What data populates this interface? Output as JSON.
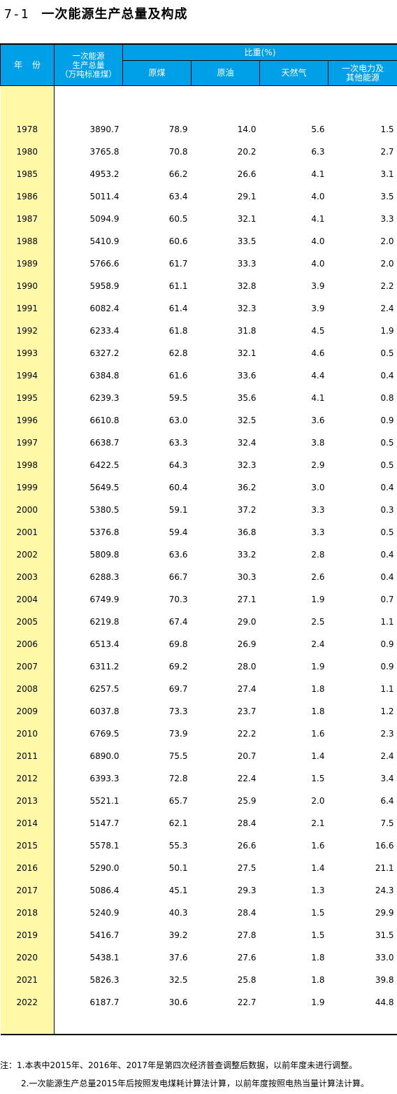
{
  "title": {
    "number": "7-1",
    "text": "一次能源生产总量及构成"
  },
  "header": {
    "year": "年份",
    "total_line1": "一次能源",
    "total_line2": "生产总量",
    "total_line3": "（万吨标准煤）",
    "share": "比重(%)",
    "coal": "原煤",
    "oil": "原油",
    "gas": "天然气",
    "other_line1": "一次电力及",
    "other_line2": "其他能源"
  },
  "rows": [
    {
      "year": "1978",
      "total": "3890.7",
      "coal": "78.9",
      "oil": "14.0",
      "gas": "5.6",
      "other": "1.5"
    },
    {
      "year": "1980",
      "total": "3765.8",
      "coal": "70.8",
      "oil": "20.2",
      "gas": "6.3",
      "other": "2.7"
    },
    {
      "year": "1985",
      "total": "4953.2",
      "coal": "66.2",
      "oil": "26.6",
      "gas": "4.1",
      "other": "3.1"
    },
    {
      "year": "1986",
      "total": "5011.4",
      "coal": "63.4",
      "oil": "29.1",
      "gas": "4.0",
      "other": "3.5"
    },
    {
      "year": "1987",
      "total": "5094.9",
      "coal": "60.5",
      "oil": "32.1",
      "gas": "4.1",
      "other": "3.3"
    },
    {
      "year": "1988",
      "total": "5410.9",
      "coal": "60.6",
      "oil": "33.5",
      "gas": "4.0",
      "other": "2.0"
    },
    {
      "year": "1989",
      "total": "5766.6",
      "coal": "61.7",
      "oil": "33.3",
      "gas": "4.0",
      "other": "2.0"
    },
    {
      "year": "1990",
      "total": "5958.9",
      "coal": "61.1",
      "oil": "32.8",
      "gas": "3.9",
      "other": "2.2"
    },
    {
      "year": "1991",
      "total": "6082.4",
      "coal": "61.4",
      "oil": "32.3",
      "gas": "3.9",
      "other": "2.4"
    },
    {
      "year": "1992",
      "total": "6233.4",
      "coal": "61.8",
      "oil": "31.8",
      "gas": "4.5",
      "other": "1.9"
    },
    {
      "year": "1993",
      "total": "6327.2",
      "coal": "62.8",
      "oil": "32.1",
      "gas": "4.6",
      "other": "0.5"
    },
    {
      "year": "1994",
      "total": "6384.8",
      "coal": "61.6",
      "oil": "33.6",
      "gas": "4.4",
      "other": "0.4"
    },
    {
      "year": "1995",
      "total": "6239.3",
      "coal": "59.5",
      "oil": "35.6",
      "gas": "4.1",
      "other": "0.8"
    },
    {
      "year": "1996",
      "total": "6610.8",
      "coal": "63.0",
      "oil": "32.5",
      "gas": "3.6",
      "other": "0.9"
    },
    {
      "year": "1997",
      "total": "6638.7",
      "coal": "63.3",
      "oil": "32.4",
      "gas": "3.8",
      "other": "0.5"
    },
    {
      "year": "1998",
      "total": "6422.5",
      "coal": "64.3",
      "oil": "32.3",
      "gas": "2.9",
      "other": "0.5"
    },
    {
      "year": "1999",
      "total": "5649.5",
      "coal": "60.4",
      "oil": "36.2",
      "gas": "3.0",
      "other": "0.4"
    },
    {
      "year": "2000",
      "total": "5380.5",
      "coal": "59.1",
      "oil": "37.2",
      "gas": "3.3",
      "other": "0.3"
    },
    {
      "year": "2001",
      "total": "5376.8",
      "coal": "59.4",
      "oil": "36.8",
      "gas": "3.3",
      "other": "0.5"
    },
    {
      "year": "2002",
      "total": "5809.8",
      "coal": "63.6",
      "oil": "33.2",
      "gas": "2.8",
      "other": "0.4"
    },
    {
      "year": "2003",
      "total": "6288.3",
      "coal": "66.7",
      "oil": "30.3",
      "gas": "2.6",
      "other": "0.4"
    },
    {
      "year": "2004",
      "total": "6749.9",
      "coal": "70.3",
      "oil": "27.1",
      "gas": "1.9",
      "other": "0.7"
    },
    {
      "year": "2005",
      "total": "6219.8",
      "coal": "67.4",
      "oil": "29.0",
      "gas": "2.5",
      "other": "1.1"
    },
    {
      "year": "2006",
      "total": "6513.4",
      "coal": "69.8",
      "oil": "26.9",
      "gas": "2.4",
      "other": "0.9"
    },
    {
      "year": "2007",
      "total": "6311.2",
      "coal": "69.2",
      "oil": "28.0",
      "gas": "1.9",
      "other": "0.9"
    },
    {
      "year": "2008",
      "total": "6257.5",
      "coal": "69.7",
      "oil": "27.4",
      "gas": "1.8",
      "other": "1.1"
    },
    {
      "year": "2009",
      "total": "6037.8",
      "coal": "73.3",
      "oil": "23.7",
      "gas": "1.8",
      "other": "1.2"
    },
    {
      "year": "2010",
      "total": "6769.5",
      "coal": "73.9",
      "oil": "22.2",
      "gas": "1.6",
      "other": "2.3"
    },
    {
      "year": "2011",
      "total": "6890.0",
      "coal": "75.5",
      "oil": "20.7",
      "gas": "1.4",
      "other": "2.4"
    },
    {
      "year": "2012",
      "total": "6393.3",
      "coal": "72.8",
      "oil": "22.4",
      "gas": "1.5",
      "other": "3.4"
    },
    {
      "year": "2013",
      "total": "5521.1",
      "coal": "65.7",
      "oil": "25.9",
      "gas": "2.0",
      "other": "6.4"
    },
    {
      "year": "2014",
      "total": "5147.7",
      "coal": "62.1",
      "oil": "28.4",
      "gas": "2.1",
      "other": "7.5"
    },
    {
      "year": "2015",
      "total": "5578.1",
      "coal": "55.3",
      "oil": "26.6",
      "gas": "1.6",
      "other": "16.6"
    },
    {
      "year": "2016",
      "total": "5290.0",
      "coal": "50.1",
      "oil": "27.5",
      "gas": "1.4",
      "other": "21.1"
    },
    {
      "year": "2017",
      "total": "5086.4",
      "coal": "45.1",
      "oil": "29.3",
      "gas": "1.3",
      "other": "24.3"
    },
    {
      "year": "2018",
      "total": "5240.9",
      "coal": "40.3",
      "oil": "28.4",
      "gas": "1.5",
      "other": "29.9"
    },
    {
      "year": "2019",
      "total": "5416.7",
      "coal": "39.2",
      "oil": "27.8",
      "gas": "1.5",
      "other": "31.5"
    },
    {
      "year": "2020",
      "total": "5438.1",
      "coal": "37.6",
      "oil": "27.6",
      "gas": "1.8",
      "other": "33.0"
    },
    {
      "year": "2021",
      "total": "5826.3",
      "coal": "32.5",
      "oil": "25.8",
      "gas": "1.8",
      "other": "39.8"
    },
    {
      "year": "2022",
      "total": "6187.7",
      "coal": "30.6",
      "oil": "22.7",
      "gas": "1.9",
      "other": "44.8"
    }
  ],
  "notes": {
    "line1": "注：1.本表中2015年、2016年、2017年是第四次经济普查调整后数据，以前年度未进行调整。",
    "line2": "2.一次能源生产总量2015年后按照发电煤耗计算法计算，以前年度按照电热当量计算法计算。"
  },
  "colors": {
    "header_bg": "#00a0e9",
    "year_col_bg": "#fff8a6"
  }
}
